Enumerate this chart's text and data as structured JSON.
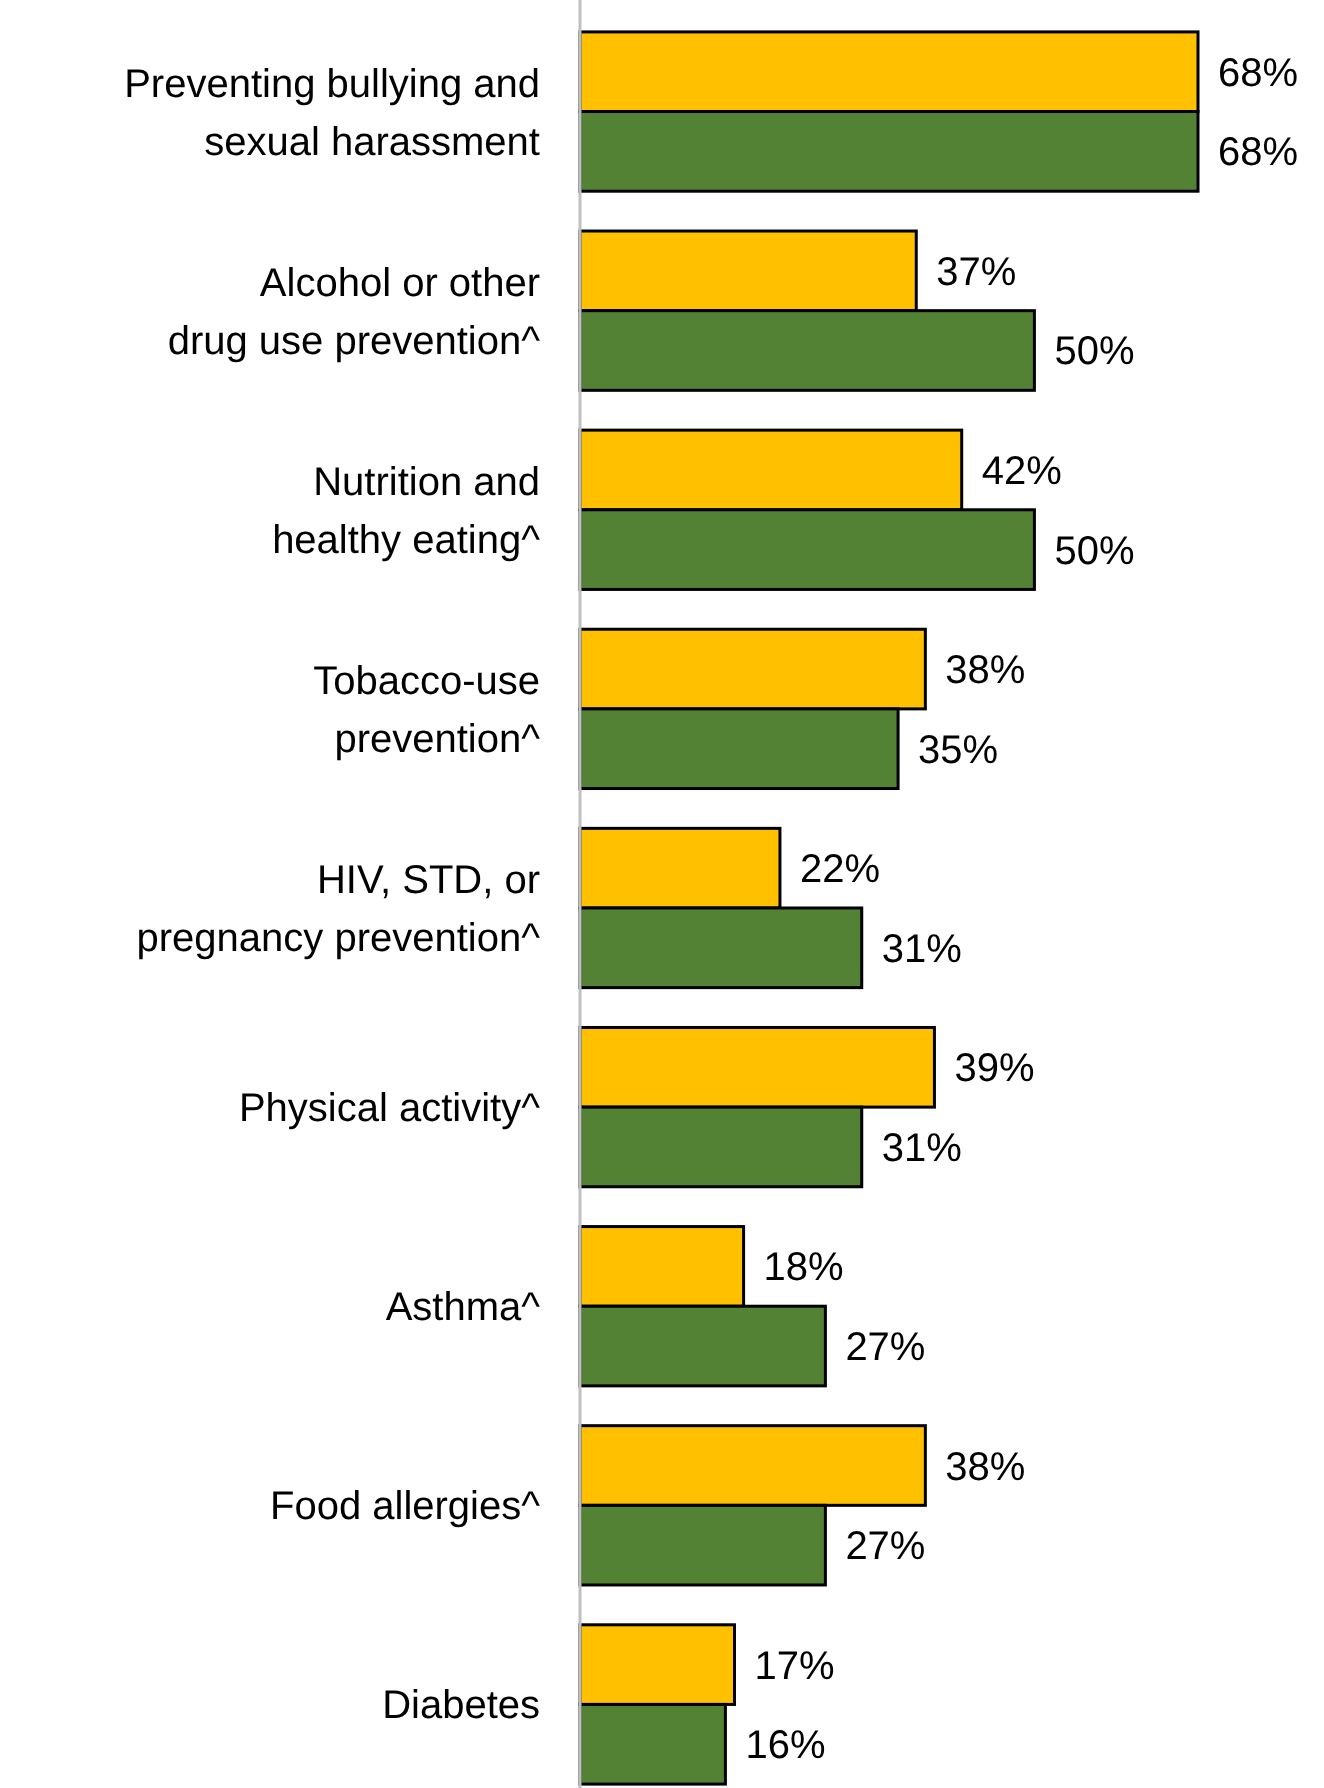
{
  "chart_data": {
    "type": "bar",
    "orientation": "horizontal",
    "categories": [
      "Preventing bullying and\nsexual harassment",
      "Alcohol or other\ndrug use prevention^",
      "Nutrition and\nhealthy eating^",
      "Tobacco-use\nprevention^",
      "HIV, STD, or\npregnancy prevention^",
      "Physical activity^",
      "Asthma^",
      "Food allergies^",
      "Diabetes"
    ],
    "series": [
      {
        "color": "#ffc000",
        "values": [
          68,
          37,
          42,
          38,
          22,
          39,
          18,
          38,
          17
        ],
        "value_labels": [
          "68%",
          "37%",
          "42%",
          "38%",
          "22%",
          "39%",
          "18%",
          "38%",
          "17%"
        ]
      },
      {
        "color": "#548235",
        "values": [
          68,
          50,
          50,
          35,
          31,
          31,
          27,
          27,
          16
        ],
        "value_labels": [
          "68%",
          "50%",
          "50%",
          "35%",
          "31%",
          "31%",
          "27%",
          "27%",
          "16%"
        ]
      }
    ]
  }
}
